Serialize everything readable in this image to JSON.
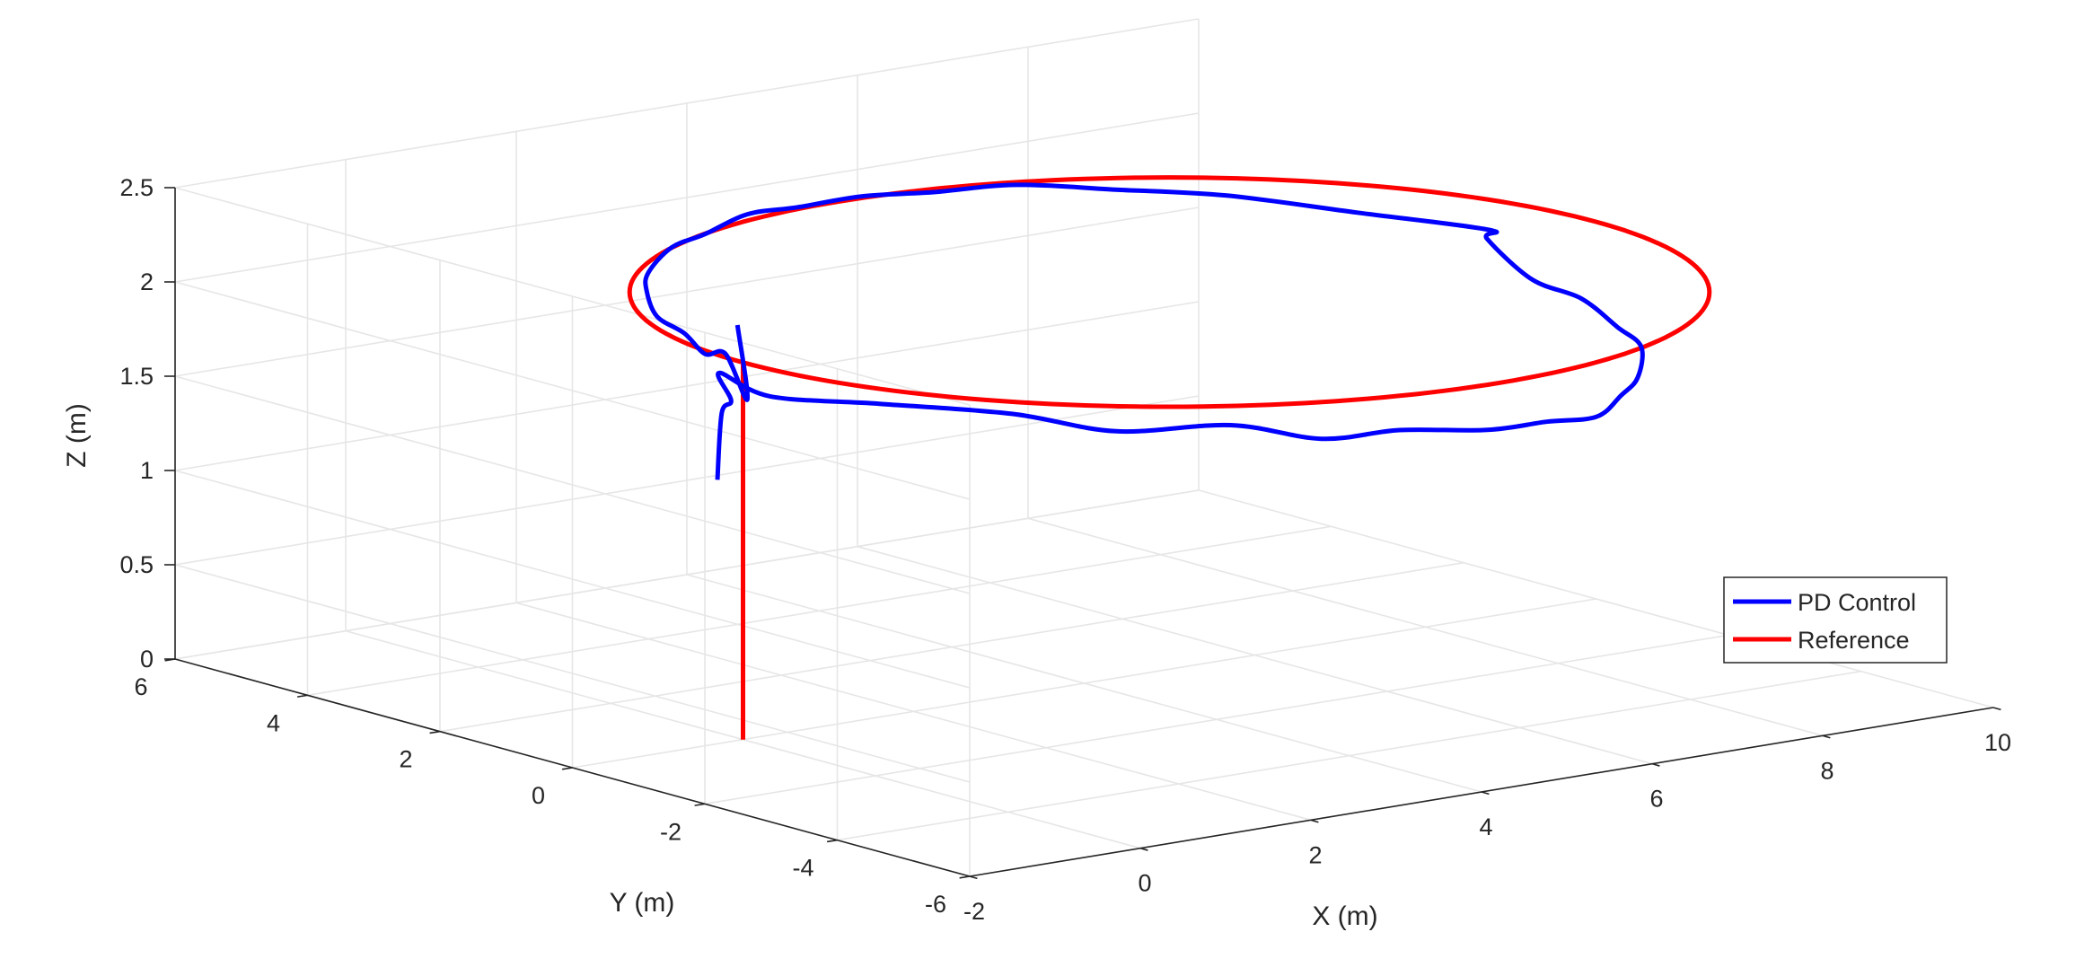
{
  "chart_data": {
    "type": "line",
    "projection": "3d",
    "title": "",
    "xlabel": "X (m)",
    "ylabel": "Y (m)",
    "zlabel": "Z (m)",
    "xlim": [
      -2,
      10
    ],
    "ylim": [
      -6,
      6
    ],
    "zlim": [
      0,
      2.5
    ],
    "xticks": [
      "-2",
      "0",
      "2",
      "4",
      "6",
      "8",
      "10"
    ],
    "yticks": [
      "-6",
      "-4",
      "-2",
      "0",
      "2",
      "4",
      "6"
    ],
    "zticks": [
      "0",
      "0.5",
      "1",
      "1.5",
      "2",
      "2.5"
    ],
    "grid": true,
    "legend_position": "right",
    "series": [
      {
        "name": "PD Control",
        "color": "#0000ff",
        "points": [
          [
            -0.3,
            0.0,
            1.4
          ],
          [
            -0.25,
            0.0,
            1.75
          ],
          [
            -0.1,
            0.05,
            1.8
          ],
          [
            -0.2,
            0.1,
            1.95
          ],
          [
            0.2,
            -0.15,
            1.82
          ],
          [
            0.9,
            -0.9,
            1.8
          ],
          [
            1.6,
            -2.0,
            1.8
          ],
          [
            2.2,
            -2.8,
            1.74
          ],
          [
            3.0,
            -3.5,
            1.78
          ],
          [
            3.6,
            -4.1,
            1.72
          ],
          [
            4.2,
            -4.5,
            1.76
          ],
          [
            5.0,
            -4.8,
            1.73
          ],
          [
            5.5,
            -5.05,
            1.76
          ],
          [
            6.2,
            -4.9,
            1.72
          ],
          [
            6.8,
            -4.5,
            1.75
          ],
          [
            7.5,
            -3.85,
            1.73
          ],
          [
            8.2,
            -3.0,
            1.76
          ],
          [
            8.7,
            -2.0,
            1.73
          ],
          [
            9.05,
            -1.0,
            1.76
          ],
          [
            9.25,
            0.0,
            1.75
          ],
          [
            9.15,
            0.55,
            1.92
          ],
          [
            8.9,
            0.2,
            2.02
          ],
          [
            8.6,
            1.8,
            1.98
          ],
          [
            8.0,
            3.0,
            2.0
          ],
          [
            7.4,
            3.9,
            1.99
          ],
          [
            6.7,
            4.5,
            2.01
          ],
          [
            6.0,
            4.85,
            1.99
          ],
          [
            5.3,
            5.05,
            2.0
          ],
          [
            4.6,
            5.1,
            1.99
          ],
          [
            3.9,
            4.95,
            2.02
          ],
          [
            3.2,
            4.7,
            1.99
          ],
          [
            2.5,
            4.3,
            2.01
          ],
          [
            1.8,
            3.75,
            1.98
          ],
          [
            1.2,
            3.0,
            2.0
          ],
          [
            0.7,
            2.2,
            1.98
          ],
          [
            0.4,
            1.4,
            1.99
          ],
          [
            0.1,
            0.7,
            1.97
          ],
          [
            -0.05,
            0.2,
            2.03
          ],
          [
            0.05,
            0.0,
            1.8
          ],
          [
            -0.05,
            0.02,
            2.2
          ]
        ]
      },
      {
        "name": "Reference",
        "color": "#ff0000",
        "circle": {
          "center": [
            5.0,
            0.0
          ],
          "radius": 5.0,
          "z": 2.0,
          "start_angle_deg": 180
        },
        "takeoff": {
          "x": 0.0,
          "y": 0.0,
          "z_from": 0.0,
          "z_to": 2.0
        }
      }
    ]
  }
}
